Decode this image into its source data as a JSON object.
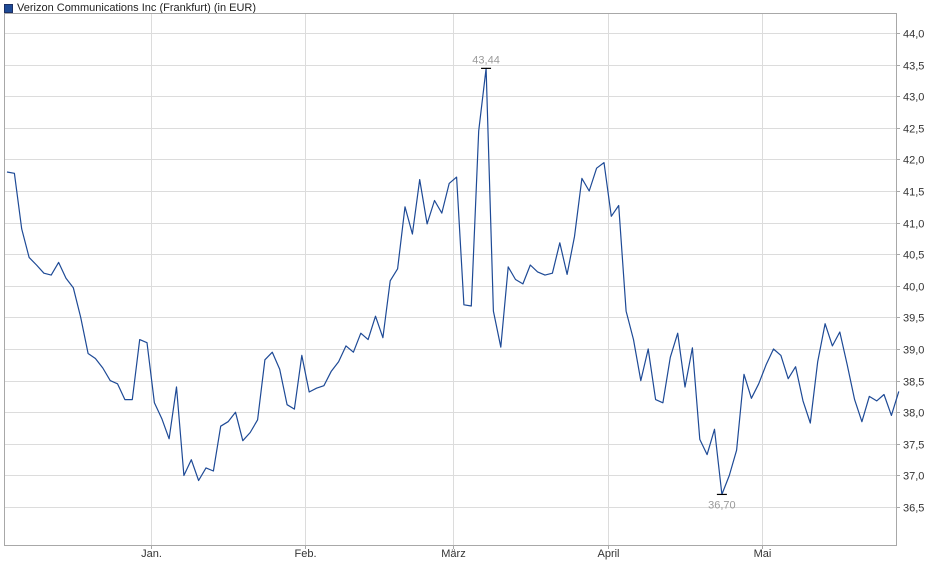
{
  "legend": {
    "label": "Verizon Communications Inc (Frankfurt) (in EUR)",
    "color": "#1e4a96"
  },
  "chart_data": {
    "type": "line",
    "title": "",
    "xlabel": "",
    "ylabel": "",
    "ylim": [
      35.9,
      44.3
    ],
    "y_ticks": [
      36.5,
      37.0,
      37.5,
      38.0,
      38.5,
      39.0,
      39.5,
      40.0,
      40.5,
      41.0,
      41.5,
      42.0,
      42.5,
      43.0,
      43.5,
      44.0
    ],
    "y_tick_labels": [
      "36,5",
      "37,0",
      "37,5",
      "38,0",
      "38,5",
      "39,0",
      "39,5",
      "40,0",
      "40,5",
      "41,0",
      "41,5",
      "42,0",
      "42,5",
      "43,0",
      "43,5",
      "44,0"
    ],
    "x_month_labels": [
      "Jan.",
      "Feb.",
      "März",
      "April",
      "Mai"
    ],
    "x_month_start_index": [
      20,
      41,
      61,
      82,
      103
    ],
    "grid": true,
    "series": [
      {
        "color": "#1e4a96",
        "values": [
          41.8,
          41.78,
          40.9,
          40.45,
          40.33,
          40.2,
          40.17,
          40.37,
          40.12,
          39.97,
          39.5,
          38.93,
          38.85,
          38.7,
          38.5,
          38.45,
          38.2,
          38.2,
          39.15,
          39.1,
          38.15,
          37.9,
          37.58,
          38.4,
          37.0,
          37.25,
          36.92,
          37.12,
          37.07,
          37.78,
          37.85,
          38.0,
          37.55,
          37.68,
          37.88,
          38.83,
          38.95,
          38.68,
          38.12,
          38.05,
          38.9,
          38.32,
          38.38,
          38.42,
          38.65,
          38.8,
          39.05,
          38.95,
          39.25,
          39.15,
          39.52,
          39.18,
          40.08,
          40.27,
          41.25,
          40.82,
          41.68,
          40.98,
          41.35,
          41.15,
          41.62,
          41.72,
          39.7,
          39.68,
          42.45,
          43.44,
          39.6,
          39.03,
          40.3,
          40.1,
          40.03,
          40.33,
          40.22,
          40.17,
          40.2,
          40.68,
          40.18,
          40.78,
          41.7,
          41.5,
          41.86,
          41.95,
          41.1,
          41.27,
          39.6,
          39.15,
          38.5,
          39.0,
          38.2,
          38.15,
          38.87,
          39.25,
          38.4,
          39.02,
          37.57,
          37.33,
          37.73,
          36.7,
          37.0,
          37.4,
          38.6,
          38.22,
          38.45,
          38.75,
          39.0,
          38.9,
          38.53,
          38.72,
          38.18,
          37.83,
          38.8,
          39.4,
          39.05,
          39.27,
          38.75,
          38.2,
          37.85,
          38.25,
          38.18,
          38.28,
          37.95,
          38.33
        ]
      }
    ],
    "annotations": [
      {
        "index": 65,
        "value": 43.44,
        "label": "43,44",
        "position": "above"
      },
      {
        "index": 97,
        "value": 36.7,
        "label": "36,70",
        "position": "below"
      }
    ]
  }
}
